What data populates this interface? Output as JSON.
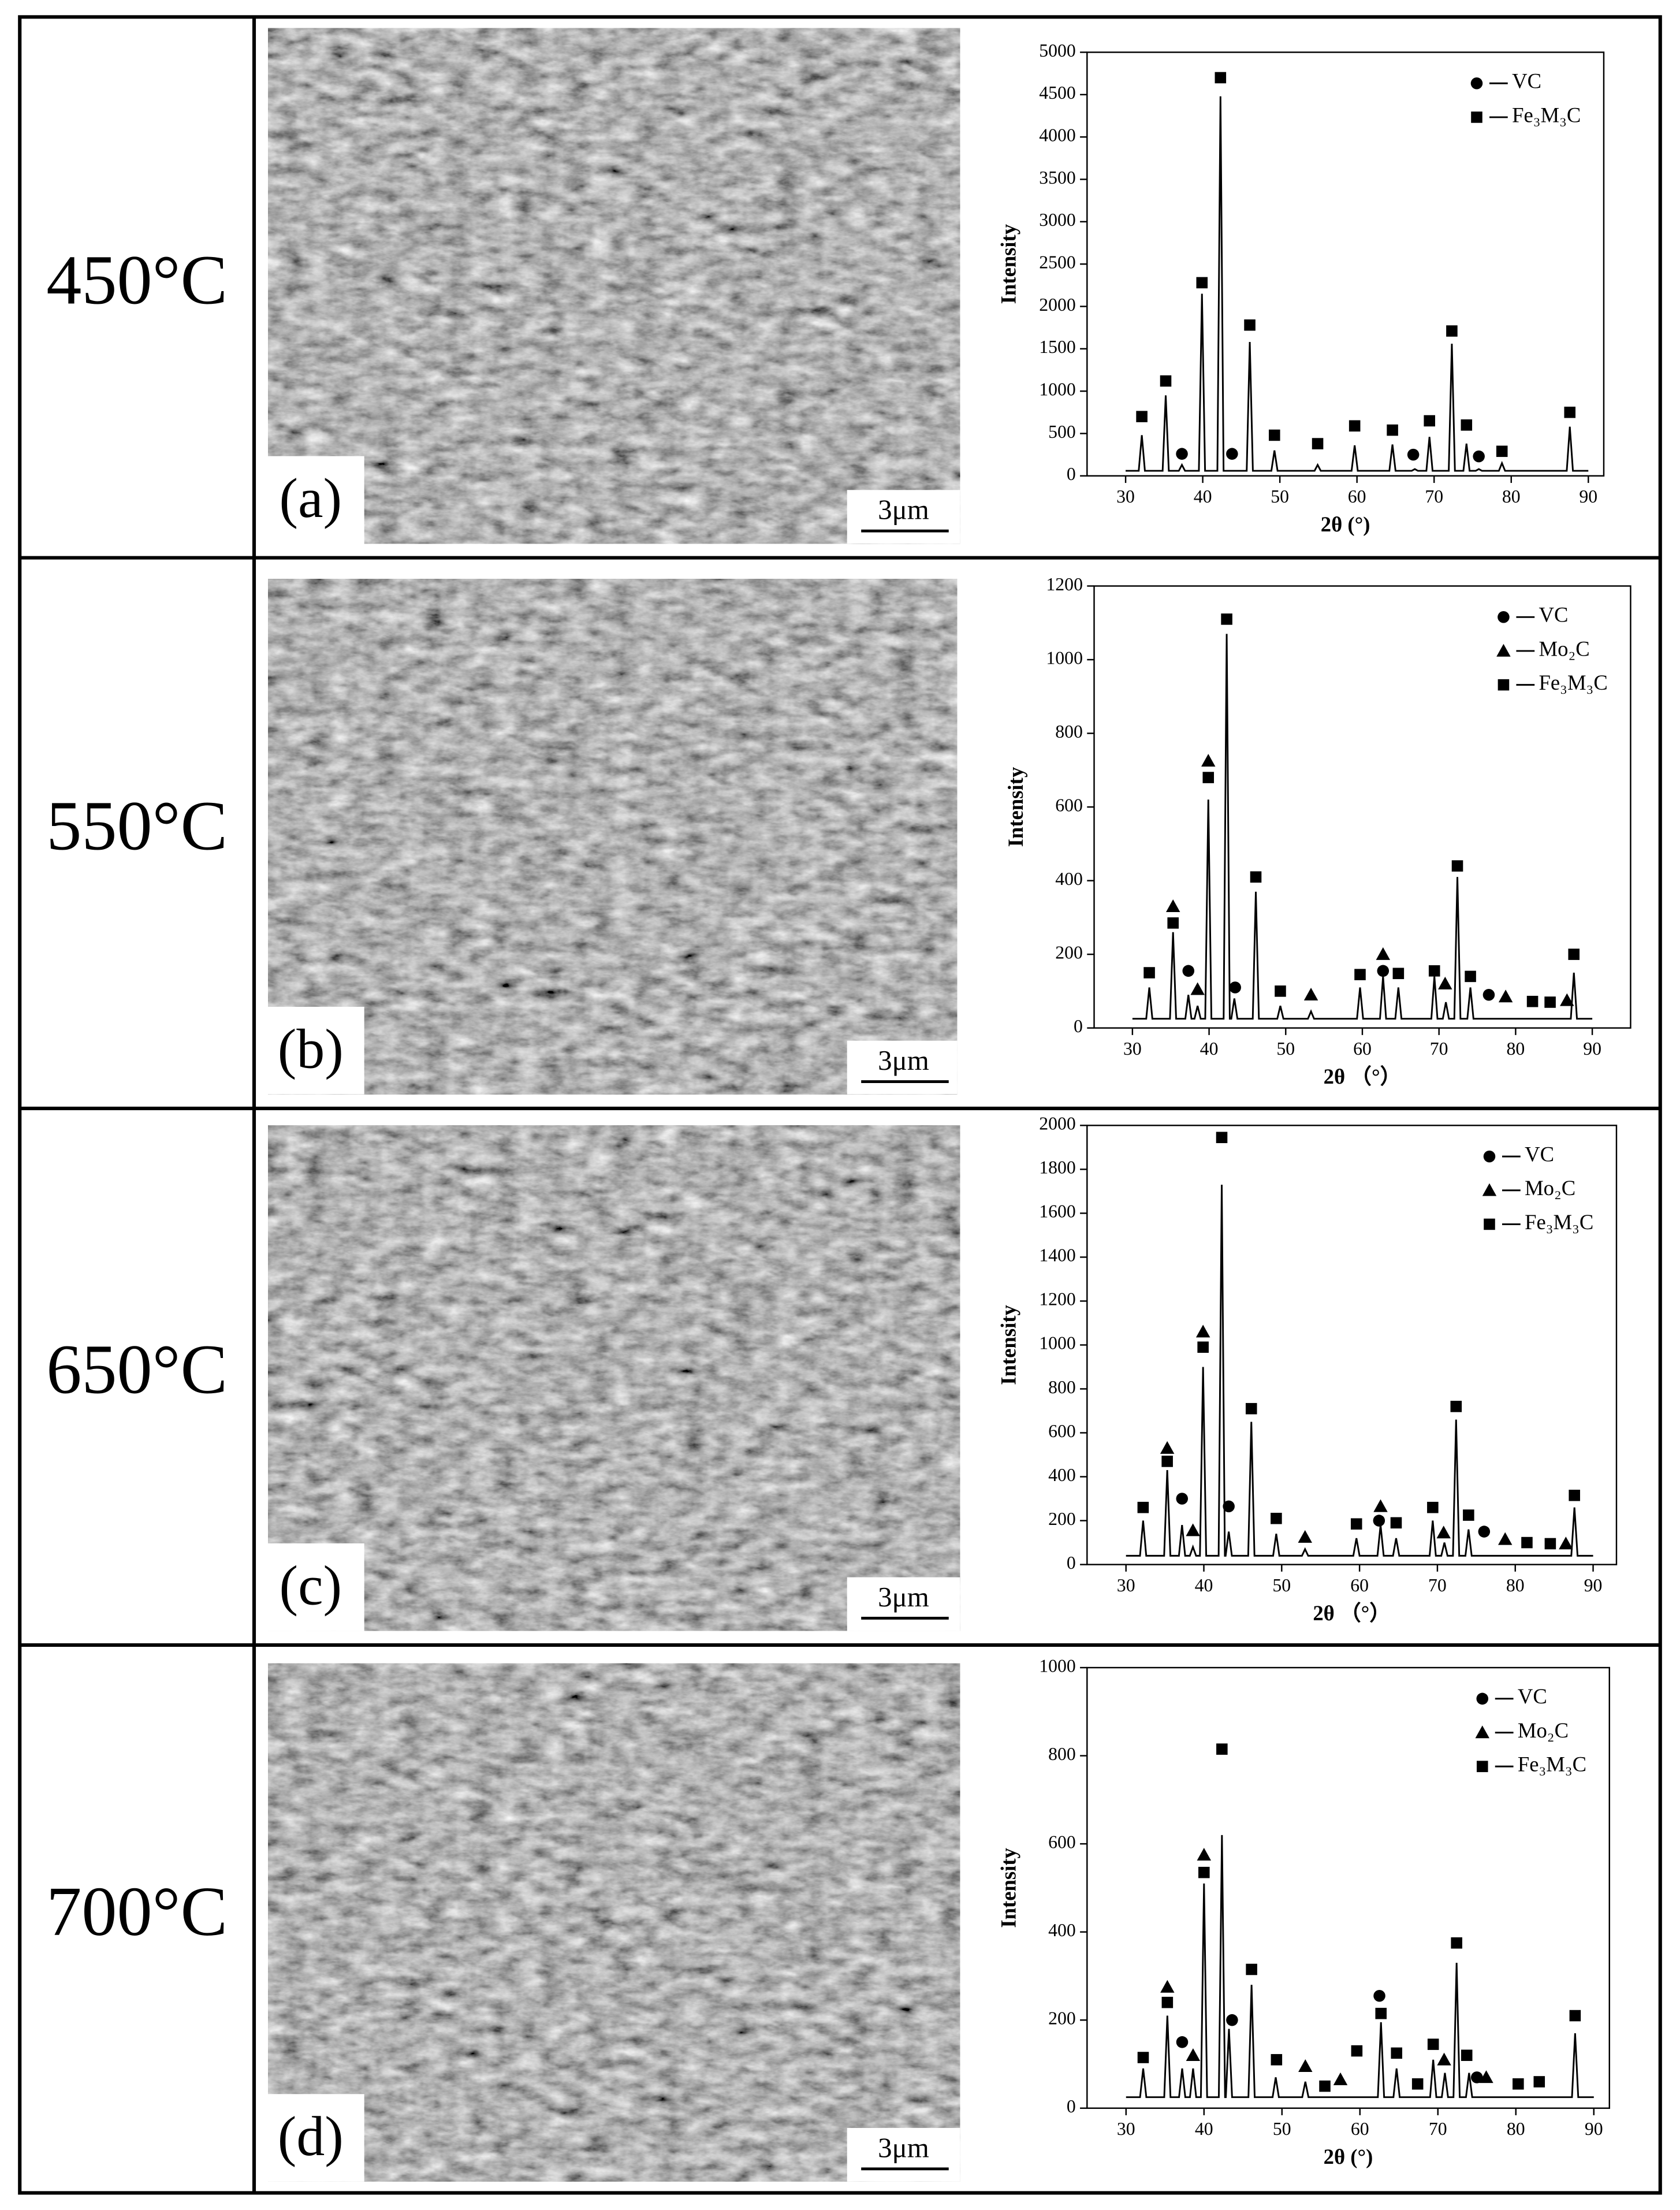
{
  "rows": [
    {
      "temperature": "450°C",
      "panel_label": "(a)",
      "scale_bar": "3μm"
    },
    {
      "temperature": "550°C",
      "panel_label": "(b)",
      "scale_bar": "3μm"
    },
    {
      "temperature": "650°C",
      "panel_label": "(c)",
      "scale_bar": "3μm"
    },
    {
      "temperature": "700°C",
      "panel_label": "(d)",
      "scale_bar": "3μm"
    }
  ],
  "chart_data": [
    {
      "type": "line",
      "xlabel": "2θ (°)",
      "ylabel": "Intensity",
      "color": "#000000",
      "legend": "upper right",
      "xlim": [
        25,
        92
      ],
      "ylim": [
        0,
        5000
      ],
      "xticks": [
        30,
        40,
        50,
        60,
        70,
        80,
        90
      ],
      "yticks": [
        0,
        500,
        1000,
        1500,
        2000,
        2500,
        3000,
        3500,
        4000,
        4500,
        5000
      ],
      "x": [
        30,
        31.7,
        32.1,
        32.5,
        34.8,
        35.2,
        35.6,
        36.9,
        37.3,
        37.7,
        39.5,
        39.9,
        40.3,
        41.9,
        42.3,
        42.7,
        45.7,
        46.1,
        46.5,
        48.9,
        49.3,
        49.7,
        54.5,
        54.9,
        55.3,
        59.3,
        59.7,
        60.1,
        64.2,
        64.6,
        65,
        67.1,
        67.5,
        67.9,
        69,
        69.4,
        69.8,
        71.9,
        72.3,
        72.7,
        73.8,
        74.2,
        74.6,
        75.4,
        75.8,
        76.2,
        78.4,
        78.8,
        79.2,
        87.2,
        87.6,
        88,
        90
      ],
      "values": [
        60,
        60,
        480,
        60,
        60,
        950,
        60,
        60,
        130,
        60,
        60,
        2150,
        60,
        60,
        4480,
        60,
        60,
        1580,
        60,
        60,
        300,
        60,
        60,
        130,
        60,
        60,
        360,
        60,
        60,
        370,
        60,
        60,
        80,
        60,
        60,
        460,
        60,
        60,
        1560,
        60,
        60,
        380,
        60,
        60,
        80,
        60,
        60,
        150,
        60,
        60,
        580,
        60,
        60
      ],
      "series": [
        {
          "name": "VC",
          "marker": "circle",
          "color": "#000000",
          "x": [
            37.3,
            43.8,
            67.3,
            75.8
          ],
          "values": [
            260,
            260,
            250,
            230
          ]
        },
        {
          "name": "Fe₃M₃C",
          "marker": "square",
          "color": "#000000",
          "x": [
            32.1,
            35.2,
            39.9,
            42.3,
            46.1,
            49.3,
            54.9,
            59.7,
            64.6,
            69.4,
            72.3,
            74.2,
            78.8,
            87.6
          ],
          "values": [
            700,
            1120,
            2280,
            4700,
            1780,
            480,
            380,
            590,
            540,
            650,
            1710,
            600,
            290,
            750
          ]
        }
      ]
    },
    {
      "type": "line",
      "xlabel": "2θ （°）",
      "ylabel": "Intensity",
      "color": "#000000",
      "legend": "upper right",
      "xlim": [
        25,
        95
      ],
      "ylim": [
        0,
        1200
      ],
      "xticks": [
        30,
        40,
        50,
        60,
        70,
        80,
        90
      ],
      "yticks": [
        0,
        200,
        400,
        600,
        800,
        1000,
        1200
      ],
      "x": [
        30,
        31.8,
        32.2,
        32.6,
        34.9,
        35.3,
        35.7,
        36.9,
        37.3,
        37.7,
        38.1,
        38.5,
        38.9,
        39.5,
        39.9,
        40.3,
        41.9,
        42.3,
        42.7,
        42.9,
        43.3,
        43.7,
        45.7,
        46.1,
        46.5,
        48.9,
        49.3,
        49.7,
        52.9,
        53.3,
        53.7,
        59.3,
        59.7,
        60.1,
        62.3,
        62.7,
        63.1,
        64.3,
        64.7,
        65.1,
        69,
        69.4,
        69.8,
        70.5,
        70.9,
        71.3,
        72,
        72.4,
        72.8,
        73.7,
        74.1,
        74.5,
        87.2,
        87.6,
        88,
        90
      ],
      "values": [
        25,
        25,
        110,
        25,
        25,
        260,
        25,
        25,
        90,
        25,
        25,
        60,
        25,
        25,
        620,
        25,
        25,
        1070,
        25,
        25,
        80,
        25,
        25,
        370,
        25,
        25,
        60,
        25,
        25,
        45,
        25,
        25,
        110,
        25,
        25,
        140,
        25,
        25,
        110,
        25,
        25,
        140,
        25,
        25,
        70,
        25,
        25,
        410,
        25,
        25,
        110,
        25,
        25,
        150,
        25,
        25
      ],
      "series": [
        {
          "name": "VC",
          "marker": "circle",
          "color": "#000000",
          "x": [
            37.3,
            43.4,
            62.7,
            76.5
          ],
          "values": [
            155,
            110,
            155,
            90
          ]
        },
        {
          "name": "Mo₂C",
          "marker": "triangle",
          "color": "#000000",
          "x": [
            35.3,
            38.5,
            39.9,
            53.3,
            62.7,
            70.8,
            78.7,
            86.7
          ],
          "values": [
            330,
            105,
            725,
            90,
            200,
            120,
            85,
            75
          ]
        },
        {
          "name": "Fe₃M₃C",
          "marker": "square",
          "color": "#000000",
          "x": [
            32.2,
            35.3,
            39.9,
            42.3,
            46.1,
            49.3,
            59.7,
            64.7,
            69.4,
            72.4,
            74.1,
            82.2,
            84.5,
            87.6
          ],
          "values": [
            150,
            285,
            680,
            1110,
            410,
            100,
            145,
            148,
            155,
            440,
            140,
            72,
            70,
            200
          ]
        }
      ]
    },
    {
      "type": "line",
      "xlabel": "2θ （°）",
      "ylabel": "Intensity",
      "color": "#000000",
      "legend": "upper right",
      "xlim": [
        25,
        93
      ],
      "ylim": [
        0,
        2000
      ],
      "xticks": [
        30,
        40,
        50,
        60,
        70,
        80,
        90
      ],
      "yticks": [
        0,
        200,
        400,
        600,
        800,
        1000,
        1200,
        1400,
        1600,
        1800,
        2000
      ],
      "x": [
        30,
        31.8,
        32.2,
        32.6,
        34.9,
        35.3,
        35.7,
        36.8,
        37.2,
        37.6,
        38.2,
        38.6,
        39,
        39.5,
        39.9,
        40.3,
        41.9,
        42.3,
        42.7,
        42.8,
        43.2,
        43.6,
        45.7,
        46.1,
        46.5,
        48.9,
        49.3,
        49.7,
        52.6,
        53,
        53.4,
        59.2,
        59.6,
        60,
        62.3,
        62.7,
        63.1,
        64.3,
        64.7,
        65.1,
        69,
        69.4,
        69.8,
        70.5,
        70.9,
        71.3,
        72,
        72.4,
        72.8,
        73.6,
        74,
        74.4,
        87.2,
        87.6,
        88,
        90
      ],
      "values": [
        40,
        40,
        200,
        40,
        40,
        430,
        40,
        40,
        180,
        40,
        40,
        80,
        40,
        40,
        900,
        40,
        40,
        1730,
        40,
        40,
        150,
        40,
        40,
        650,
        40,
        40,
        140,
        40,
        40,
        70,
        40,
        40,
        120,
        40,
        40,
        180,
        40,
        40,
        120,
        40,
        40,
        200,
        40,
        40,
        100,
        40,
        40,
        660,
        40,
        40,
        160,
        40,
        40,
        260,
        40,
        40
      ],
      "series": [
        {
          "name": "VC",
          "marker": "circle",
          "color": "#000000",
          "x": [
            37.2,
            43.2,
            62.5,
            76
          ],
          "values": [
            300,
            265,
            200,
            150
          ]
        },
        {
          "name": "Mo₂C",
          "marker": "triangle",
          "color": "#000000",
          "x": [
            35.3,
            38.6,
            39.9,
            53,
            62.7,
            70.8,
            78.7,
            86.5
          ],
          "values": [
            530,
            155,
            1060,
            125,
            265,
            145,
            115,
            95
          ]
        },
        {
          "name": "Fe₃M₃C",
          "marker": "square",
          "color": "#000000",
          "x": [
            32.2,
            35.3,
            39.9,
            42.3,
            46.1,
            49.3,
            59.6,
            64.7,
            69.4,
            72.4,
            74,
            81.5,
            84.5,
            87.6
          ],
          "values": [
            260,
            470,
            990,
            1945,
            710,
            210,
            185,
            190,
            260,
            720,
            225,
            100,
            95,
            315
          ]
        }
      ]
    },
    {
      "type": "line",
      "xlabel": "2θ (°)",
      "ylabel": "Intensity",
      "color": "#000000",
      "legend": "upper right",
      "xlim": [
        25,
        92
      ],
      "ylim": [
        0,
        1000
      ],
      "xticks": [
        30,
        40,
        50,
        60,
        70,
        80,
        90
      ],
      "yticks": [
        0,
        200,
        400,
        600,
        800,
        1000
      ],
      "x": [
        30,
        31.8,
        32.2,
        32.6,
        34.9,
        35.3,
        35.7,
        36.8,
        37.2,
        37.6,
        38.2,
        38.6,
        39,
        39.6,
        40,
        40.4,
        41.9,
        42.3,
        42.7,
        42.8,
        43.2,
        43.6,
        45.7,
        46.1,
        46.5,
        48.8,
        49.2,
        49.6,
        52.6,
        53,
        53.4,
        62.3,
        62.7,
        63.1,
        64.3,
        64.7,
        65.1,
        69,
        69.4,
        69.8,
        70.5,
        70.9,
        71.3,
        72,
        72.4,
        72.8,
        73.6,
        74,
        74.4,
        87.2,
        87.6,
        88,
        90
      ],
      "values": [
        25,
        25,
        90,
        25,
        25,
        210,
        25,
        25,
        90,
        25,
        25,
        90,
        25,
        25,
        510,
        25,
        25,
        620,
        25,
        25,
        180,
        25,
        25,
        280,
        25,
        25,
        70,
        25,
        25,
        60,
        25,
        25,
        195,
        25,
        25,
        90,
        25,
        25,
        110,
        25,
        25,
        80,
        25,
        25,
        330,
        25,
        25,
        80,
        25,
        25,
        170,
        25,
        25
      ],
      "series": [
        {
          "name": "VC",
          "marker": "circle",
          "color": "#000000",
          "x": [
            37.2,
            43.6,
            62.5,
            75
          ],
          "values": [
            150,
            200,
            255,
            70
          ]
        },
        {
          "name": "Mo₂C",
          "marker": "triangle",
          "color": "#000000",
          "x": [
            35.3,
            38.6,
            40,
            53,
            57.5,
            70.8,
            76.2
          ],
          "values": [
            275,
            120,
            575,
            95,
            65,
            110,
            70
          ]
        },
        {
          "name": "Fe₃M₃C",
          "marker": "square",
          "color": "#000000",
          "x": [
            32.2,
            35.3,
            40,
            42.3,
            46.1,
            49.3,
            55.5,
            59.6,
            62.7,
            64.7,
            67.4,
            69.4,
            72.4,
            73.7,
            80.3,
            83,
            87.6
          ],
          "values": [
            115,
            240,
            535,
            815,
            315,
            110,
            50,
            130,
            215,
            125,
            55,
            145,
            375,
            120,
            55,
            60,
            210
          ]
        }
      ]
    }
  ]
}
